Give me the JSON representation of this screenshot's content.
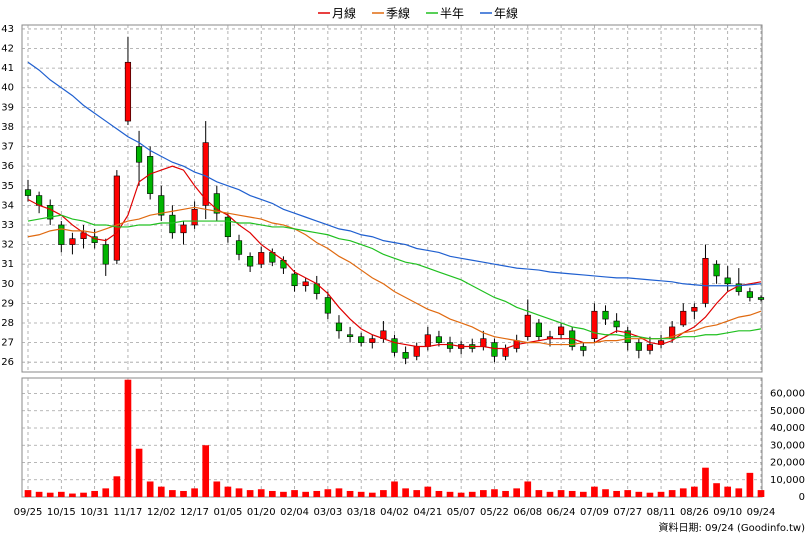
{
  "chart_data": {
    "type": "candlestick",
    "legend": "top",
    "grid": true,
    "footer": "資料日期: 09/24 (Goodinfo.tw)",
    "categories": [
      "09/25",
      null,
      null,
      "10/15",
      null,
      null,
      "10/31",
      null,
      null,
      "11/17",
      null,
      null,
      "12/02",
      null,
      null,
      "12/17",
      null,
      null,
      "01/05",
      null,
      null,
      "01/20",
      null,
      null,
      "02/04",
      null,
      null,
      "03/03",
      null,
      null,
      "03/18",
      null,
      null,
      "04/02",
      null,
      null,
      "04/21",
      null,
      null,
      "05/07",
      null,
      null,
      "05/22",
      null,
      null,
      "06/08",
      null,
      null,
      "06/24",
      null,
      null,
      "07/09",
      null,
      null,
      "07/27",
      null,
      null,
      "08/11",
      null,
      null,
      "08/26",
      null,
      null,
      "09/10",
      null,
      null,
      "09/24"
    ],
    "up_color": "#ff0000",
    "down_color": "#00b400",
    "open": [
      34.8,
      34.5,
      34.0,
      33.0,
      32.0,
      32.3,
      32.4,
      32.0,
      31.2,
      38.3,
      37.0,
      36.5,
      34.5,
      33.5,
      32.6,
      33.0,
      34.0,
      34.6,
      33.4,
      32.2,
      31.4,
      31.0,
      31.6,
      31.2,
      30.5,
      29.9,
      30.0,
      29.3,
      28.0,
      27.4,
      27.3,
      27.0,
      27.2,
      27.2,
      26.5,
      26.3,
      26.8,
      27.3,
      27.0,
      26.7,
      26.9,
      26.8,
      27.0,
      26.3,
      26.7,
      27.3,
      28.0,
      27.2,
      27.4,
      27.6,
      26.8,
      27.2,
      28.6,
      28.1,
      27.6,
      27.0,
      26.6,
      26.9,
      27.2,
      27.9,
      28.6,
      29.0,
      31.0,
      30.3,
      30.0,
      29.6,
      29.3
    ],
    "high": [
      35.3,
      34.7,
      34.3,
      33.2,
      32.6,
      33.0,
      32.8,
      32.3,
      35.8,
      42.6,
      37.8,
      37.0,
      35.0,
      34.0,
      33.2,
      34.2,
      38.3,
      35.0,
      33.6,
      32.5,
      31.6,
      31.9,
      31.8,
      31.4,
      30.7,
      30.3,
      30.4,
      29.6,
      28.4,
      27.8,
      27.5,
      27.4,
      28.1,
      27.4,
      26.8,
      27.0,
      27.8,
      27.6,
      27.3,
      27.1,
      27.2,
      27.6,
      27.2,
      26.9,
      27.4,
      29.2,
      28.2,
      27.6,
      28.0,
      27.8,
      27.0,
      29.0,
      28.9,
      28.5,
      27.8,
      27.2,
      27.3,
      27.4,
      28.1,
      29.0,
      29.0,
      32.0,
      31.2,
      30.9,
      30.8,
      29.8,
      29.4
    ],
    "low": [
      34.2,
      33.6,
      33.0,
      31.6,
      31.5,
      31.8,
      31.8,
      30.4,
      31.0,
      38.1,
      35.0,
      34.3,
      33.2,
      32.3,
      32.0,
      32.8,
      33.3,
      33.2,
      32.1,
      31.2,
      30.6,
      30.8,
      30.9,
      30.5,
      29.6,
      29.6,
      29.2,
      28.2,
      27.2,
      27.0,
      26.8,
      26.7,
      27.0,
      26.3,
      25.9,
      26.1,
      26.6,
      26.8,
      26.5,
      26.4,
      26.5,
      26.6,
      26.0,
      26.1,
      26.5,
      27.1,
      27.1,
      26.8,
      27.2,
      26.6,
      26.3,
      27.0,
      27.9,
      27.5,
      26.6,
      26.2,
      26.4,
      26.7,
      27.0,
      27.8,
      28.2,
      28.8,
      30.0,
      29.6,
      29.4,
      29.1,
      29.1
    ],
    "close": [
      34.5,
      34.0,
      33.3,
      32.0,
      32.3,
      32.6,
      32.1,
      31.0,
      35.5,
      41.3,
      36.2,
      34.6,
      33.5,
      32.6,
      33.0,
      33.8,
      37.2,
      33.6,
      32.4,
      31.5,
      30.9,
      31.6,
      31.1,
      30.8,
      29.9,
      30.1,
      29.5,
      28.5,
      27.6,
      27.3,
      27.0,
      27.2,
      27.6,
      26.5,
      26.2,
      26.8,
      27.4,
      27.0,
      26.7,
      26.9,
      26.7,
      27.2,
      26.3,
      26.7,
      27.1,
      28.4,
      27.3,
      27.3,
      27.8,
      26.8,
      26.6,
      28.6,
      28.2,
      27.8,
      27.0,
      26.6,
      26.9,
      27.1,
      27.8,
      28.6,
      28.8,
      31.3,
      30.4,
      30.0,
      29.6,
      29.3,
      29.2
    ],
    "ylim": [
      25.5,
      43.2
    ],
    "yticks": [
      26,
      27,
      28,
      29,
      30,
      31,
      32,
      33,
      34,
      35,
      36,
      37,
      38,
      39,
      40,
      41,
      42,
      43
    ],
    "series": [
      {
        "name": "月線",
        "color": "#e00000",
        "values": [
          34.3,
          34.0,
          33.8,
          33.5,
          33.0,
          32.6,
          32.3,
          32.2,
          32.6,
          33.5,
          35.2,
          35.6,
          35.8,
          36.0,
          35.8,
          35.0,
          34.3,
          33.8,
          33.5,
          33.0,
          32.6,
          32.0,
          31.6,
          31.2,
          30.6,
          30.3,
          30.0,
          29.5,
          28.8,
          28.2,
          27.7,
          27.4,
          27.2,
          27.0,
          26.9,
          26.8,
          26.8,
          26.9,
          26.9,
          26.8,
          26.8,
          26.8,
          26.7,
          26.7,
          26.9,
          27.0,
          27.1,
          27.2,
          27.2,
          27.2,
          27.0,
          27.0,
          27.3,
          27.6,
          27.5,
          27.3,
          27.0,
          26.9,
          27.1,
          27.5,
          27.8,
          28.3,
          29.0,
          29.6,
          29.9,
          30.0,
          30.1
        ]
      },
      {
        "name": "季線",
        "color": "#e06a10",
        "values": [
          32.4,
          32.5,
          32.7,
          32.8,
          32.7,
          32.7,
          32.6,
          32.8,
          33.0,
          33.2,
          33.3,
          33.5,
          33.6,
          33.7,
          33.8,
          33.9,
          33.8,
          33.7,
          33.6,
          33.5,
          33.4,
          33.3,
          33.1,
          33.0,
          32.8,
          32.5,
          32.1,
          31.8,
          31.4,
          31.1,
          30.7,
          30.3,
          30.0,
          29.6,
          29.3,
          29.0,
          28.7,
          28.5,
          28.2,
          28.0,
          27.8,
          27.5,
          27.3,
          27.2,
          27.1,
          27.0,
          27.0,
          26.9,
          26.9,
          26.9,
          27.0,
          27.0,
          27.1,
          27.1,
          27.2,
          27.2,
          27.2,
          27.2,
          27.3,
          27.5,
          27.6,
          27.8,
          27.9,
          28.1,
          28.3,
          28.4,
          28.6
        ]
      },
      {
        "name": "半年",
        "color": "#20c020",
        "values": [
          33.2,
          33.3,
          33.4,
          33.5,
          33.3,
          33.2,
          33.0,
          33.0,
          32.9,
          32.9,
          33.0,
          33.0,
          33.1,
          33.1,
          33.2,
          33.2,
          33.2,
          33.2,
          33.2,
          33.1,
          33.1,
          33.0,
          32.9,
          32.9,
          32.8,
          32.7,
          32.6,
          32.5,
          32.3,
          32.2,
          32.0,
          31.8,
          31.5,
          31.3,
          31.1,
          31.0,
          30.8,
          30.6,
          30.4,
          30.2,
          29.9,
          29.6,
          29.3,
          29.1,
          28.8,
          28.6,
          28.4,
          28.2,
          28.0,
          27.8,
          27.7,
          27.5,
          27.4,
          27.4,
          27.3,
          27.3,
          27.2,
          27.2,
          27.2,
          27.3,
          27.3,
          27.4,
          27.4,
          27.5,
          27.6,
          27.6,
          27.7
        ]
      },
      {
        "name": "年線",
        "color": "#2060d0",
        "values": [
          41.3,
          40.9,
          40.4,
          40.0,
          39.6,
          39.1,
          38.7,
          38.3,
          37.9,
          37.5,
          37.2,
          36.8,
          36.5,
          36.2,
          36.0,
          35.7,
          35.5,
          35.2,
          35.0,
          34.8,
          34.5,
          34.3,
          34.1,
          33.8,
          33.6,
          33.4,
          33.2,
          33.0,
          32.8,
          32.7,
          32.5,
          32.4,
          32.2,
          32.1,
          32.0,
          31.8,
          31.7,
          31.6,
          31.4,
          31.3,
          31.2,
          31.1,
          31.0,
          30.9,
          30.8,
          30.75,
          30.7,
          30.6,
          30.55,
          30.5,
          30.45,
          30.4,
          30.35,
          30.3,
          30.3,
          30.25,
          30.2,
          30.15,
          30.1,
          30.0,
          29.95,
          29.9,
          29.9,
          29.9,
          29.9,
          29.95,
          30.0
        ]
      }
    ],
    "volume": {
      "color": "#ff0000",
      "values": [
        4000,
        3000,
        2500,
        3000,
        2000,
        2500,
        3500,
        5000,
        12000,
        68000,
        28000,
        9000,
        6000,
        4000,
        3500,
        5000,
        30000,
        9000,
        6000,
        5000,
        4000,
        4500,
        3500,
        3000,
        4000,
        3000,
        3500,
        4500,
        5000,
        3500,
        3000,
        2500,
        4000,
        9000,
        5000,
        4000,
        6000,
        3500,
        3000,
        2500,
        3000,
        4000,
        4500,
        3500,
        5000,
        9000,
        4000,
        3000,
        4000,
        3500,
        3000,
        6000,
        4500,
        3500,
        4000,
        3000,
        2500,
        3000,
        4000,
        5000,
        6000,
        17000,
        8000,
        6000,
        5000,
        14000,
        4000
      ],
      "ylim": [
        0,
        69000
      ],
      "yticks": [
        0,
        {
          "value": 10000,
          "label": "10,000"
        },
        {
          "value": 20000,
          "label": "20,000"
        },
        {
          "value": 30000,
          "label": "30,000"
        },
        {
          "value": 40000,
          "label": "40,000"
        },
        {
          "value": 50000,
          "label": "50,000"
        },
        {
          "value": 60000,
          "label": "60,000"
        }
      ]
    }
  }
}
